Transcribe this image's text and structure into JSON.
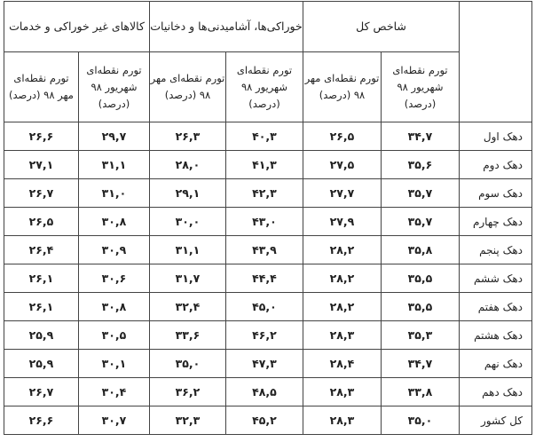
{
  "header": {
    "groups": [
      "شاخص کل",
      "خوراکی‌ها، آشامیدنی‌ها و دخانیات",
      "کالاهای غیر خوراکی و خدمات"
    ],
    "subheaders": [
      "تورم نقطه‌ای شهریور ۹۸ (درصد)",
      "تورم نقطه‌ای مهر ۹۸ (درصد)",
      "تورم نقطه‌ای شهریور ۹۸ (درصد)",
      "تورم نقطه‌ای مهر ۹۸ (درصد)",
      "تورم نقطه‌ای شهریور ۹۸ (درصد)",
      "تورم نقطه‌ای مهر ۹۸ (درصد)"
    ]
  },
  "rows": [
    {
      "label": "دهک اول",
      "values": [
        "۳۴,۷",
        "۲۶,۵",
        "۴۰,۳",
        "۲۶,۳",
        "۲۹,۷",
        "۲۶,۶"
      ]
    },
    {
      "label": "دهک دوم",
      "values": [
        "۳۵,۶",
        "۲۷,۵",
        "۴۱,۳",
        "۲۸,۰",
        "۳۱,۱",
        "۲۷,۱"
      ]
    },
    {
      "label": "دهک سوم",
      "values": [
        "۳۵,۷",
        "۲۷,۷",
        "۴۲,۳",
        "۲۹,۱",
        "۳۱,۰",
        "۲۶,۷"
      ]
    },
    {
      "label": "دهک چهارم",
      "values": [
        "۳۵,۷",
        "۲۷,۹",
        "۴۳,۰",
        "۳۰,۰",
        "۳۰,۸",
        "۲۶,۵"
      ]
    },
    {
      "label": "دهک پنجم",
      "values": [
        "۳۵,۸",
        "۲۸,۲",
        "۴۳,۹",
        "۳۱,۱",
        "۳۰,۹",
        "۲۶,۴"
      ]
    },
    {
      "label": "دهک ششم",
      "values": [
        "۳۵,۵",
        "۲۸,۲",
        "۴۴,۴",
        "۳۱,۷",
        "۳۰,۶",
        "۲۶,۱"
      ]
    },
    {
      "label": "دهک هفتم",
      "values": [
        "۳۵,۵",
        "۲۸,۲",
        "۴۵,۰",
        "۳۲,۴",
        "۳۰,۸",
        "۲۶,۱"
      ]
    },
    {
      "label": "دهک هشتم",
      "values": [
        "۳۵,۳",
        "۲۸,۳",
        "۴۶,۲",
        "۳۳,۶",
        "۳۰,۵",
        "۲۵,۹"
      ]
    },
    {
      "label": "دهک نهم",
      "values": [
        "۳۴,۷",
        "۲۸,۴",
        "۴۷,۳",
        "۳۵,۰",
        "۳۰,۱",
        "۲۵,۹"
      ]
    },
    {
      "label": "دهک دهم",
      "values": [
        "۳۳,۸",
        "۲۸,۳",
        "۴۸,۵",
        "۳۶,۲",
        "۳۰,۴",
        "۲۶,۷"
      ]
    },
    {
      "label": "کل کشور",
      "values": [
        "۳۵,۰",
        "۲۸,۳",
        "۴۵,۲",
        "۳۲,۳",
        "۳۰,۷",
        "۲۶,۶"
      ]
    }
  ]
}
